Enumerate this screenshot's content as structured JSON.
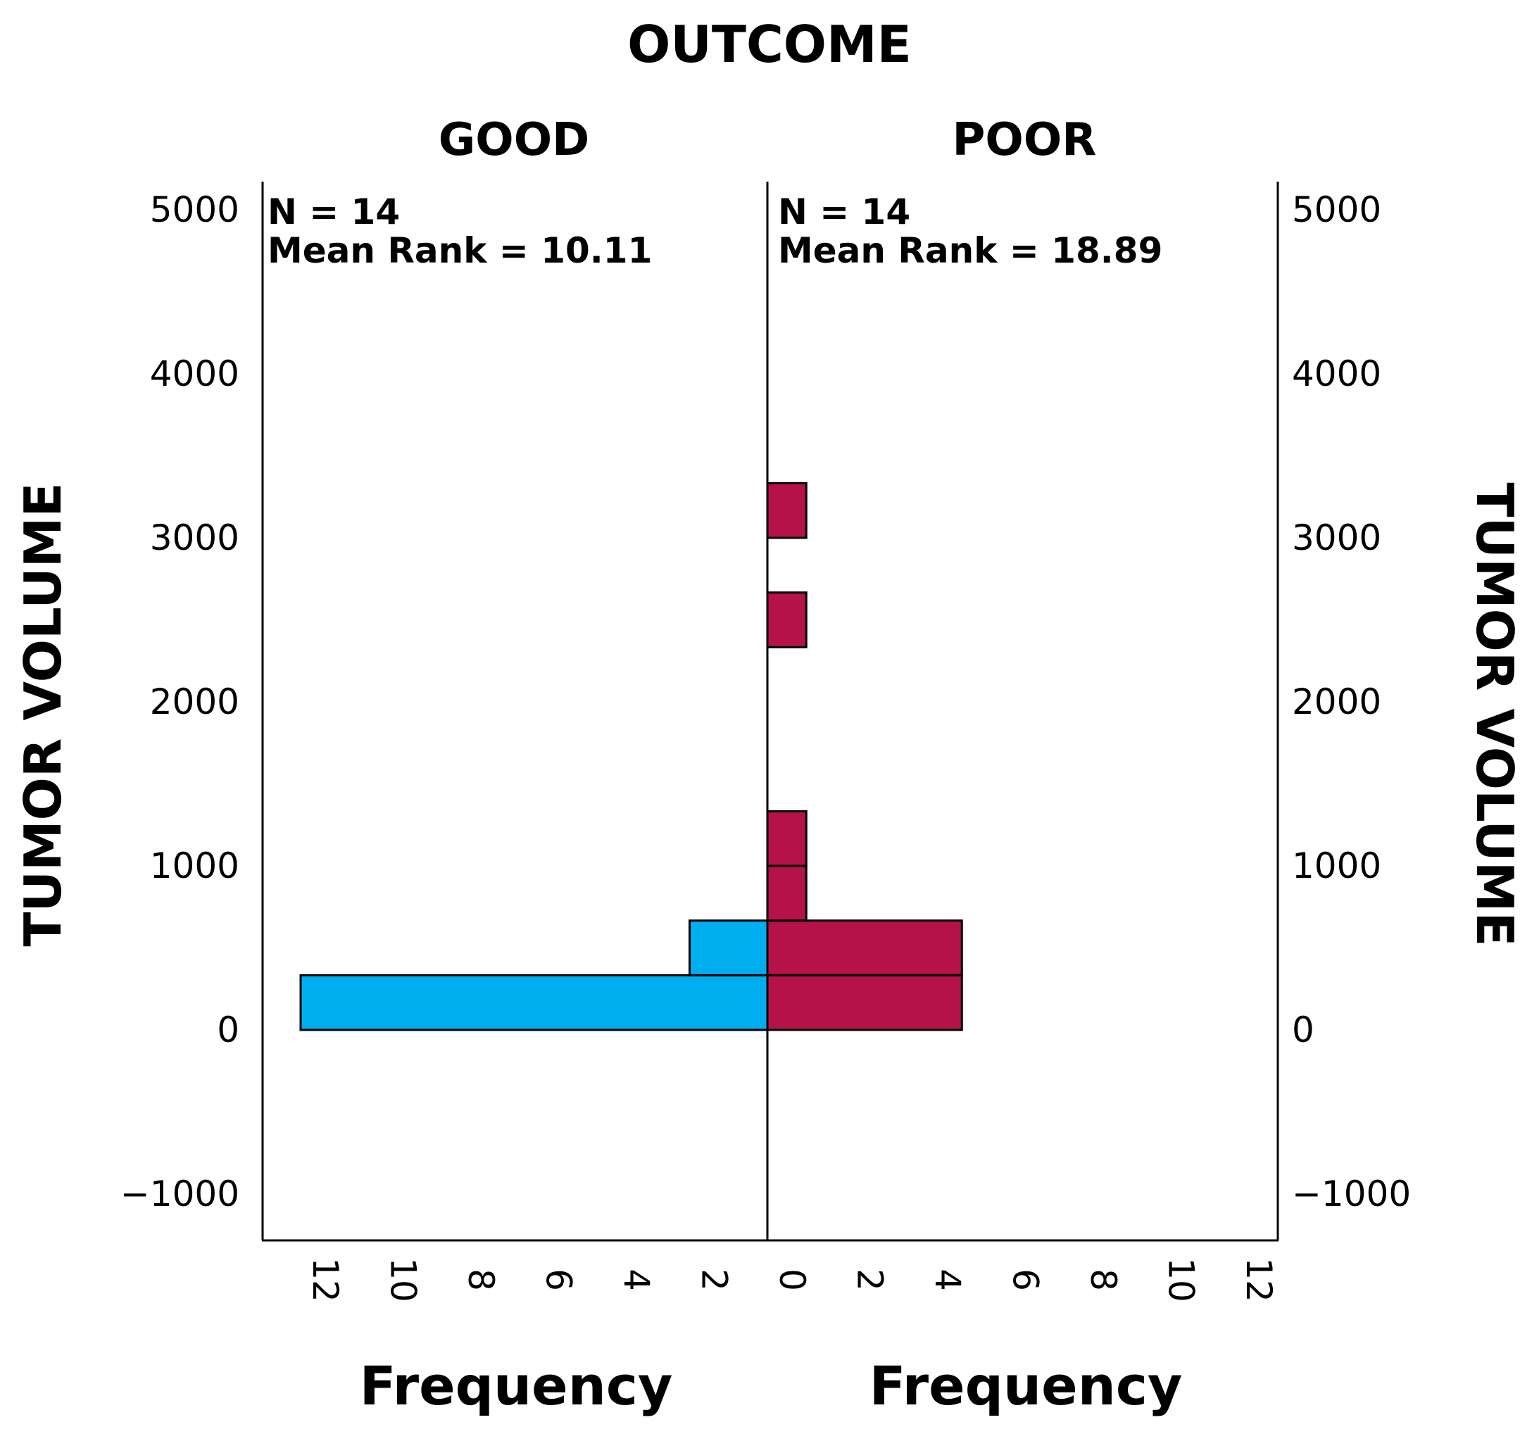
{
  "chart_data": {
    "type": "bar",
    "orientation": "population-pyramid",
    "title": "OUTCOME",
    "ylabel": "TUMOR VOLUME",
    "xlabel": "Frequency",
    "ylim": [
      -1300,
      5200
    ],
    "yticks": [
      5000,
      4000,
      3000,
      2000,
      1000,
      0,
      -1000
    ],
    "xlim": [
      0,
      12.5
    ],
    "xticks": [
      0,
      2,
      4,
      6,
      8,
      10,
      12
    ],
    "grid": false,
    "panels": [
      {
        "name": "GOOD",
        "stats": [
          "N = 14",
          "Mean Rank = 10.11"
        ],
        "color": "#00aeef",
        "bin_width": 333.3,
        "bins": [
          {
            "start": 0,
            "frequency": 12
          },
          {
            "start": 333.3,
            "frequency": 2
          }
        ]
      },
      {
        "name": "POOR",
        "stats": [
          "N = 14",
          "Mean Rank = 18.89"
        ],
        "color": "#b5124a",
        "bin_width": 333.3,
        "bins": [
          {
            "start": 0,
            "frequency": 5
          },
          {
            "start": 333.3,
            "frequency": 5
          },
          {
            "start": 666.7,
            "frequency": 1
          },
          {
            "start": 1000,
            "frequency": 1
          },
          {
            "start": 2333.3,
            "frequency": 1
          },
          {
            "start": 3000,
            "frequency": 1
          }
        ]
      }
    ]
  }
}
